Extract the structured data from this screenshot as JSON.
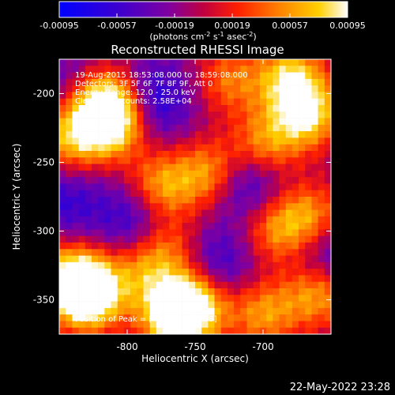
{
  "chart_data": {
    "type": "heatmap",
    "title": "Reconstructed RHESSI Image",
    "xlabel": "Heliocentric X (arcsec)",
    "ylabel": "Heliocentric Y (arcsec)",
    "x_ticks": [
      "-800",
      "-750",
      "-700"
    ],
    "y_ticks": [
      "-200",
      "-250",
      "-300",
      "-350"
    ],
    "xlim": [
      -850,
      -650
    ],
    "ylim": [
      -375,
      -175
    ],
    "x_tick_values": [
      -800,
      -750,
      -700
    ],
    "y_tick_values": [
      -200,
      -250,
      -300,
      -350
    ],
    "colorbar": {
      "ticks": [
        "-0.00095",
        "-0.00057",
        "-0.00019",
        "0.00019",
        "0.00057",
        "0.00095"
      ],
      "tick_values": [
        -0.00095,
        -0.00057,
        -0.00019,
        0.00019,
        0.00057,
        0.00095
      ],
      "range": [
        -0.00095,
        0.00095
      ],
      "colormap": "rhessi",
      "units_text": "(photons cm",
      "units_exp1": "-2",
      "units_mid1": " s",
      "units_exp2": "-1",
      "units_mid2": " asec",
      "units_exp3": "-2",
      "units_end": ")"
    },
    "annotations": {
      "time": "19-Aug-2015 18:53:08.000 to 18:59:08.000",
      "detectors": "Detectors: 3F 5F 6F 7F 8F 9F, Att 0",
      "energy": "Energy Range: 12.0 - 25.0 keV",
      "clean": "Clean    Total counts: 2.58E+04",
      "peak": "Position of Peak = [-7",
      "peak_tail": "-359]"
    },
    "footer_date": "22-May-2022 23:28",
    "grid_dims": [
      42,
      42
    ],
    "hot_spots": [
      {
        "x": -828,
        "y": -348,
        "intensity": 1.0
      },
      {
        "x": -840,
        "y": -335,
        "intensity": 0.9
      },
      {
        "x": -765,
        "y": -362,
        "intensity": 1.0
      },
      {
        "x": -750,
        "y": -352,
        "intensity": 0.8
      },
      {
        "x": -815,
        "y": -205,
        "intensity": 0.9
      },
      {
        "x": -810,
        "y": -222,
        "intensity": 0.8
      },
      {
        "x": -840,
        "y": -232,
        "intensity": 0.7
      },
      {
        "x": -775,
        "y": -268,
        "intensity": 0.7
      },
      {
        "x": -737,
        "y": -258,
        "intensity": 0.75
      },
      {
        "x": -700,
        "y": -238,
        "intensity": 0.65
      },
      {
        "x": -668,
        "y": -215,
        "intensity": 0.85
      },
      {
        "x": -680,
        "y": -188,
        "intensity": 0.75
      },
      {
        "x": -725,
        "y": -190,
        "intensity": 0.5
      },
      {
        "x": -665,
        "y": -290,
        "intensity": 0.6
      },
      {
        "x": -690,
        "y": -300,
        "intensity": 0.55
      },
      {
        "x": -660,
        "y": -345,
        "intensity": 0.7
      },
      {
        "x": -700,
        "y": -360,
        "intensity": 0.6
      },
      {
        "x": -790,
        "y": -330,
        "intensity": 0.45
      },
      {
        "x": -770,
        "y": -312,
        "intensity": 0.5
      }
    ],
    "cold_spots": [
      {
        "x": -782,
        "y": -205,
        "intensity": 0.75
      },
      {
        "x": -715,
        "y": -262,
        "intensity": 0.85
      },
      {
        "x": -793,
        "y": -292,
        "intensity": 0.65
      },
      {
        "x": -845,
        "y": -278,
        "intensity": 0.5
      },
      {
        "x": -735,
        "y": -325,
        "intensity": 0.6
      },
      {
        "x": -655,
        "y": -318,
        "intensity": 0.6
      },
      {
        "x": -840,
        "y": -190,
        "intensity": 0.3
      }
    ]
  }
}
